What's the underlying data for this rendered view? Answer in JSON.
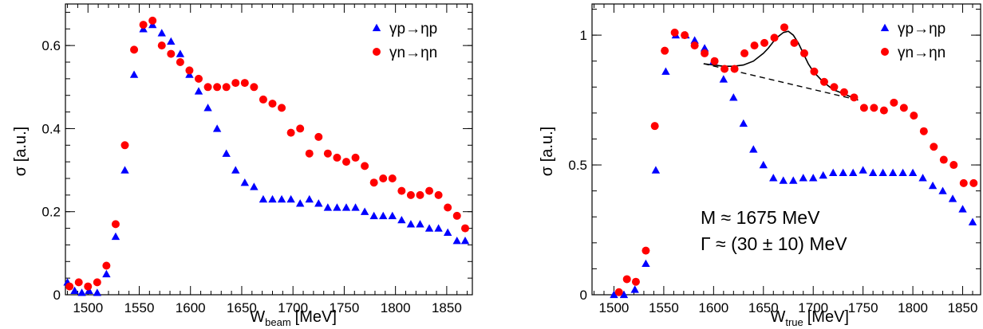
{
  "chart_data": [
    {
      "type": "scatter",
      "xlabel": "W",
      "xlabel_sub": "beam",
      "xlabel_unit": "[MeV]",
      "ylabel": "σ [a.u.]",
      "xlim": [
        1478,
        1875
      ],
      "ylim": [
        0,
        0.7
      ],
      "x_ticks": [
        1500,
        1550,
        1600,
        1650,
        1700,
        1750,
        1800,
        1850
      ],
      "y_ticks": [
        0,
        0.2,
        0.4,
        0.6
      ],
      "y_tick_labels": [
        "0",
        "0.2",
        "0.4",
        "0.6"
      ],
      "legend_position": "top-right",
      "series": [
        {
          "name": "γp→ηp",
          "color": "#0000ff",
          "marker": "triangle",
          "x": [
            1480,
            1487,
            1494,
            1501,
            1509,
            1518,
            1527,
            1536,
            1545,
            1554,
            1563,
            1572,
            1581,
            1590,
            1599,
            1608,
            1617,
            1626,
            1635,
            1644,
            1653,
            1662,
            1671,
            1680,
            1689,
            1698,
            1707,
            1716,
            1725,
            1734,
            1743,
            1752,
            1761,
            1770,
            1779,
            1788,
            1797,
            1806,
            1815,
            1824,
            1833,
            1842,
            1851,
            1860,
            1868
          ],
          "y": [
            0.03,
            0.01,
            0.005,
            0.01,
            0.005,
            0.05,
            0.14,
            0.3,
            0.53,
            0.64,
            0.65,
            0.63,
            0.61,
            0.58,
            0.53,
            0.49,
            0.45,
            0.4,
            0.34,
            0.3,
            0.27,
            0.26,
            0.23,
            0.23,
            0.23,
            0.23,
            0.22,
            0.23,
            0.22,
            0.21,
            0.21,
            0.21,
            0.21,
            0.2,
            0.19,
            0.19,
            0.19,
            0.18,
            0.17,
            0.17,
            0.16,
            0.16,
            0.15,
            0.13,
            0.13
          ]
        },
        {
          "name": "γn→ηn",
          "color": "#ff0000",
          "marker": "circle",
          "x": [
            1482,
            1491,
            1500,
            1509,
            1518,
            1527,
            1536,
            1545,
            1554,
            1563,
            1572,
            1581,
            1590,
            1599,
            1608,
            1617,
            1626,
            1635,
            1644,
            1653,
            1662,
            1671,
            1680,
            1689,
            1698,
            1707,
            1716,
            1725,
            1734,
            1743,
            1752,
            1761,
            1770,
            1779,
            1788,
            1797,
            1806,
            1815,
            1824,
            1833,
            1842,
            1851,
            1860,
            1868
          ],
          "y": [
            0.02,
            0.03,
            0.02,
            0.03,
            0.07,
            0.17,
            0.36,
            0.59,
            0.65,
            0.66,
            0.6,
            0.58,
            0.56,
            0.54,
            0.52,
            0.5,
            0.5,
            0.5,
            0.51,
            0.51,
            0.5,
            0.47,
            0.46,
            0.45,
            0.39,
            0.4,
            0.34,
            0.38,
            0.34,
            0.33,
            0.32,
            0.33,
            0.31,
            0.27,
            0.28,
            0.28,
            0.25,
            0.24,
            0.24,
            0.25,
            0.24,
            0.21,
            0.19,
            0.16
          ]
        }
      ]
    },
    {
      "type": "scatter",
      "xlabel": "W",
      "xlabel_sub": "true",
      "xlabel_unit": "[MeV]",
      "ylabel": "σ [a.u.]",
      "xlim": [
        1478,
        1868
      ],
      "ylim": [
        0,
        1.12
      ],
      "x_ticks": [
        1500,
        1550,
        1600,
        1650,
        1700,
        1750,
        1800,
        1850
      ],
      "y_ticks": [
        0,
        0.5,
        1
      ],
      "y_tick_labels": [
        "0",
        "0.5",
        "1"
      ],
      "legend_position": "top-right",
      "annotations": [
        "M ≈ 1675 MeV",
        "Γ ≈ (30 ± 10) MeV"
      ],
      "fit_curve": {
        "x": [
          1590,
          1600,
          1610,
          1620,
          1630,
          1640,
          1650,
          1655,
          1660,
          1665,
          1670,
          1675,
          1680,
          1685,
          1690,
          1695,
          1700,
          1710,
          1720,
          1730,
          1745
        ],
        "y": [
          0.89,
          0.885,
          0.88,
          0.88,
          0.885,
          0.9,
          0.93,
          0.95,
          0.975,
          0.995,
          1.01,
          1.015,
          1.0,
          0.97,
          0.93,
          0.89,
          0.86,
          0.82,
          0.79,
          0.775,
          0.75
        ]
      },
      "background_line": {
        "x": [
          1590,
          1745
        ],
        "y": [
          0.89,
          0.75
        ]
      },
      "series": [
        {
          "name": "γp→ηp",
          "color": "#0000ff",
          "marker": "triangle",
          "x": [
            1500,
            1510,
            1521,
            1532,
            1542,
            1552,
            1562,
            1572,
            1581,
            1591,
            1600,
            1610,
            1620,
            1630,
            1640,
            1650,
            1660,
            1670,
            1680,
            1690,
            1700,
            1710,
            1720,
            1730,
            1740,
            1750,
            1760,
            1770,
            1780,
            1790,
            1800,
            1810,
            1820,
            1830,
            1840,
            1850,
            1860
          ],
          "y": [
            0.0,
            0.0,
            0.02,
            0.12,
            0.48,
            0.86,
            1.0,
            1.0,
            0.98,
            0.95,
            0.9,
            0.83,
            0.76,
            0.66,
            0.56,
            0.5,
            0.45,
            0.44,
            0.44,
            0.45,
            0.45,
            0.46,
            0.47,
            0.47,
            0.47,
            0.48,
            0.47,
            0.47,
            0.47,
            0.47,
            0.47,
            0.45,
            0.42,
            0.4,
            0.37,
            0.33,
            0.28
          ]
        },
        {
          "name": "γn→ηn",
          "color": "#ff0000",
          "marker": "circle",
          "x": [
            1505,
            1513,
            1522,
            1532,
            1541,
            1551,
            1561,
            1571,
            1581,
            1591,
            1601,
            1611,
            1621,
            1631,
            1641,
            1651,
            1661,
            1671,
            1681,
            1691,
            1701,
            1711,
            1721,
            1731,
            1741,
            1751,
            1761,
            1771,
            1781,
            1791,
            1801,
            1811,
            1821,
            1831,
            1841,
            1851,
            1861
          ],
          "y": [
            0.01,
            0.06,
            0.05,
            0.17,
            0.65,
            0.94,
            1.01,
            1.0,
            0.96,
            0.93,
            0.9,
            0.87,
            0.87,
            0.93,
            0.96,
            0.97,
            0.99,
            1.03,
            0.97,
            0.93,
            0.86,
            0.82,
            0.8,
            0.78,
            0.76,
            0.72,
            0.72,
            0.71,
            0.74,
            0.72,
            0.69,
            0.63,
            0.57,
            0.52,
            0.5,
            0.43,
            0.43
          ]
        }
      ]
    }
  ]
}
